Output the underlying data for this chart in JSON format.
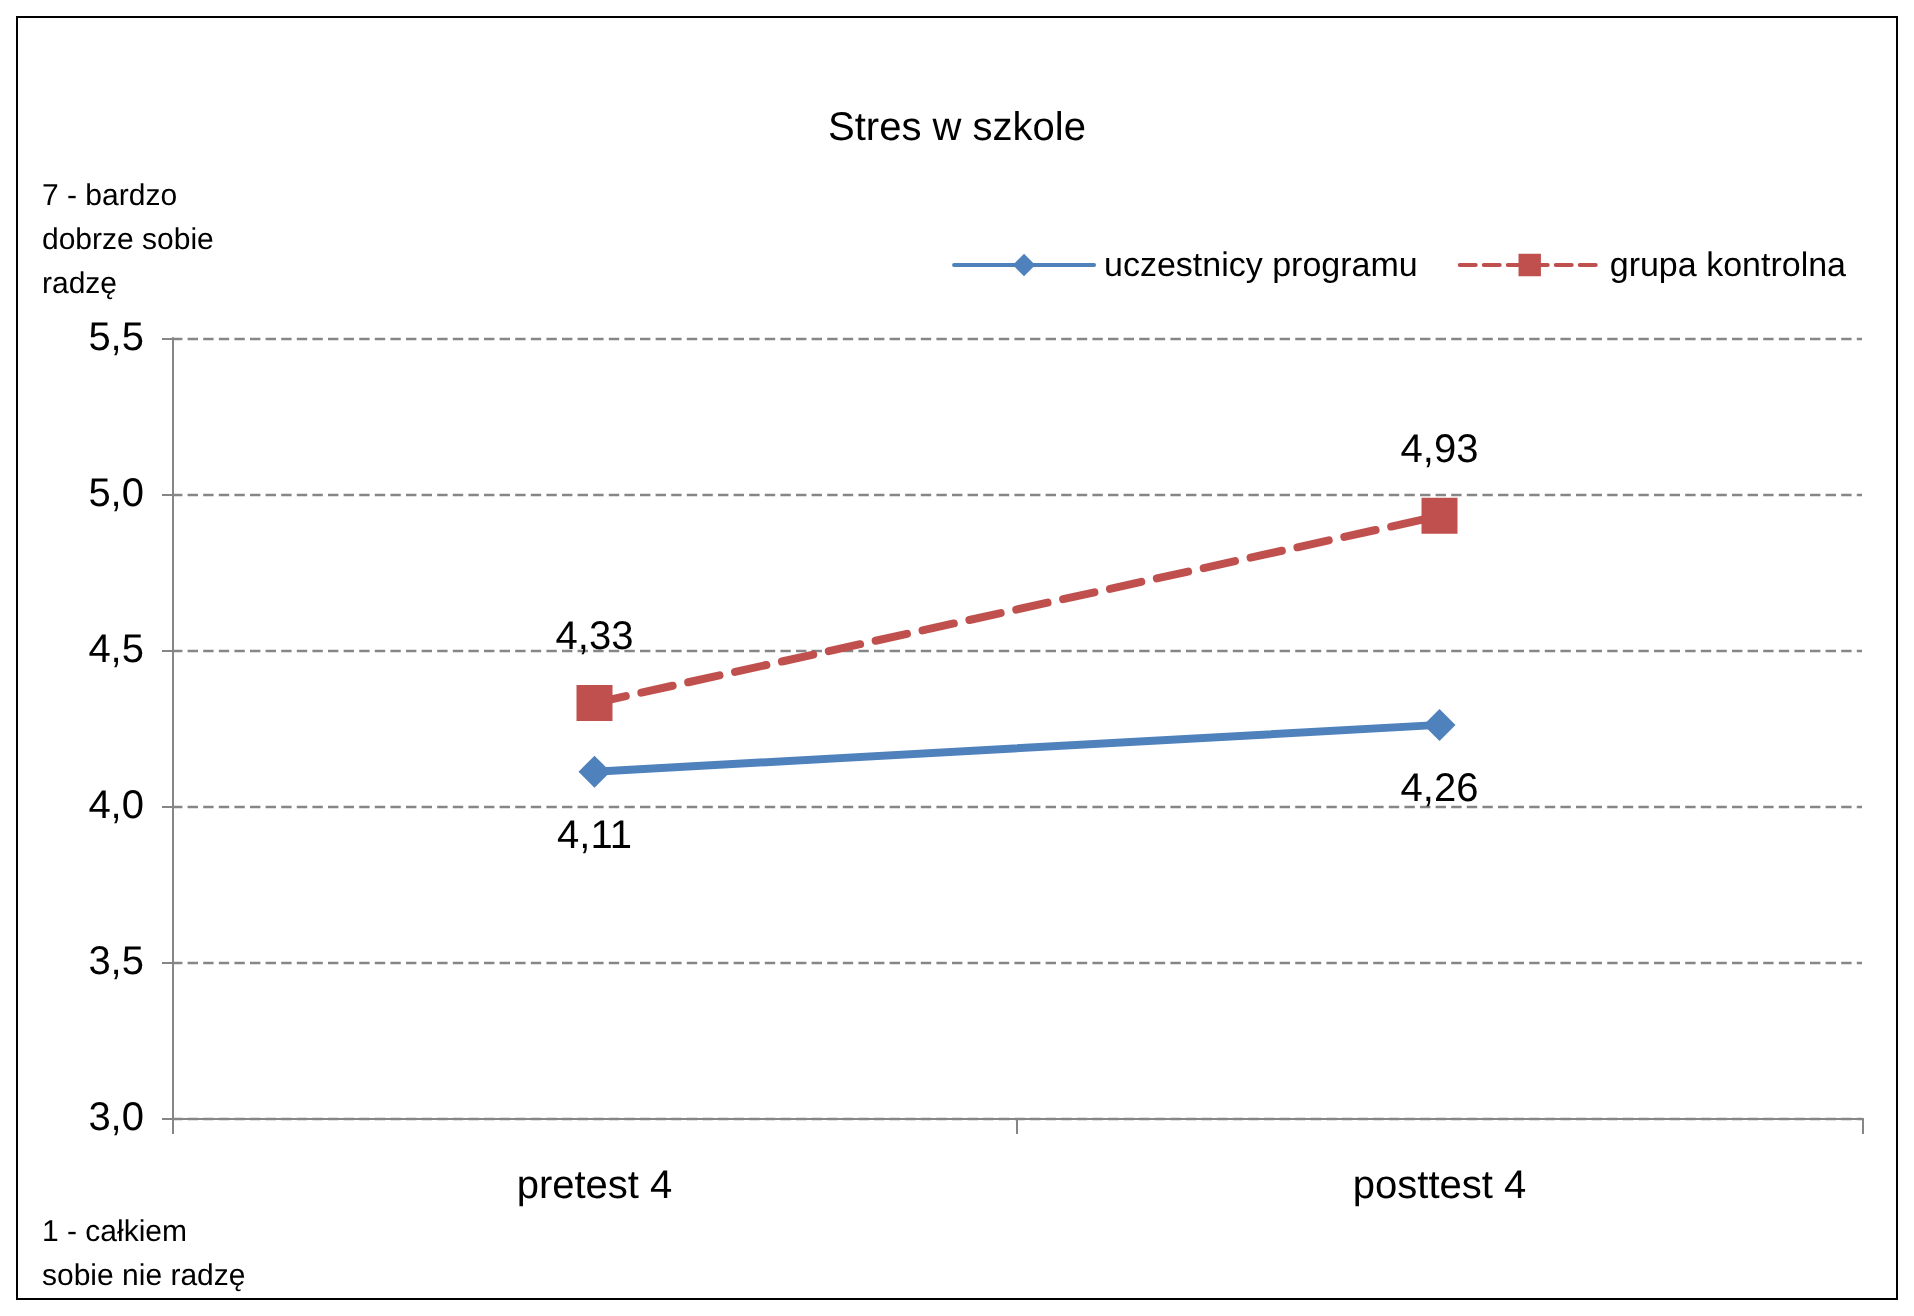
{
  "chart_data": {
    "type": "line",
    "title": "Stres w szkole",
    "categories": [
      "pretest 4",
      "posttest 4"
    ],
    "series": [
      {
        "name": "uczestnicy programu",
        "color": "#4f81bd",
        "values": [
          4.11,
          4.26
        ],
        "value_labels": [
          "4,11",
          "4,26"
        ],
        "marker": "diamond",
        "line_style": "solid"
      },
      {
        "name": "grupa kontrolna",
        "color": "#c0504d",
        "values": [
          4.33,
          4.93
        ],
        "value_labels": [
          "4,33",
          "4,93"
        ],
        "marker": "square",
        "line_style": "dashed"
      }
    ],
    "ylim": [
      3,
      5.5
    ],
    "yticks": [
      {
        "value": 3,
        "label": "3,0"
      },
      {
        "value": 3.5,
        "label": "3,5"
      },
      {
        "value": 4,
        "label": "4,0"
      },
      {
        "value": 4.5,
        "label": "4,5"
      },
      {
        "value": 5,
        "label": "5,0"
      },
      {
        "value": 5.5,
        "label": "5,5"
      }
    ],
    "grid": "y",
    "legend": "top right",
    "annotations": [
      "7 - bardzo dobrze sobie radzę",
      "1 - całkiem sobie nie radzę"
    ]
  }
}
